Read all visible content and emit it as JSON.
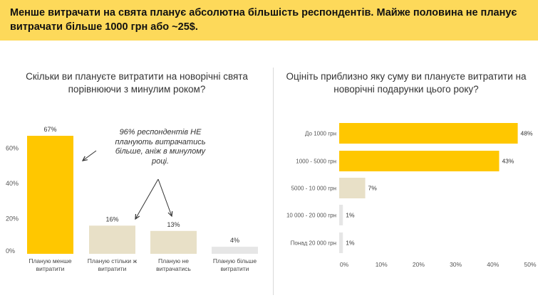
{
  "banner": {
    "text": "Менше витрачати на свята планує абсолютна більшість респондентів. Майже половина не планує витрачати більше 1000 грн або ~25$."
  },
  "colors": {
    "accent": "#FDD95A",
    "bar_yellow": "#FFC700",
    "bar_beige": "#E8E0C7",
    "bar_grey": "#E6E6E6"
  },
  "left_chart": {
    "title": "Скільки ви плануєте витратити на новорічні свята порівнюючи з минулим роком?",
    "callout": "96% респондентів НЕ планують витрачатись більше, аніж в минулому році."
  },
  "right_chart": {
    "title": "Оцініть приблизно яку суму ви плануєте витратити на новорічні подарунки цього року?"
  },
  "chart_data": [
    {
      "type": "bar",
      "orientation": "vertical",
      "title": "Скільки ви плануєте витратити на новорічні свята порівнюючи з минулим роком?",
      "categories": [
        "Планую менше витратити",
        "Планую стільки ж витратити",
        "Планую не витрачатись",
        "Планую більше витратити"
      ],
      "category_lines": [
        [
          "Планую менше",
          "витратити"
        ],
        [
          "Планую стільки ж",
          "витратити"
        ],
        [
          "Планую не",
          "витрачатись"
        ],
        [
          "Планую більше",
          "витратити"
        ]
      ],
      "values": [
        67,
        16,
        13,
        4
      ],
      "data_labels": [
        "67%",
        "16%",
        "13%",
        "4%"
      ],
      "bar_colors": [
        "#FFC700",
        "#E8E0C7",
        "#E8E0C7",
        "#E6E6E6"
      ],
      "yticks": [
        "0%",
        "20%",
        "40%",
        "60%"
      ],
      "ylim": [
        0,
        70
      ],
      "grid": false
    },
    {
      "type": "bar",
      "orientation": "horizontal",
      "title": "Оцініть приблизно яку суму ви плануєте витратити на новорічні подарунки цього року?",
      "categories": [
        "До 1000 грн",
        "1000 - 5000 грн",
        "5000 - 10 000 грн",
        "10 000 - 20 000 грн",
        "Понад 20 000 грн"
      ],
      "values": [
        48,
        43,
        7,
        1,
        1
      ],
      "data_labels": [
        "48%",
        "43%",
        "7%",
        "1%",
        "1%"
      ],
      "bar_colors": [
        "#FFC700",
        "#FFC700",
        "#E8E0C7",
        "#E6E6E6",
        "#E6E6E6"
      ],
      "xticks": [
        "0%",
        "10%",
        "20%",
        "30%",
        "40%",
        "50%"
      ],
      "xlim": [
        0,
        50
      ],
      "grid": false
    }
  ]
}
